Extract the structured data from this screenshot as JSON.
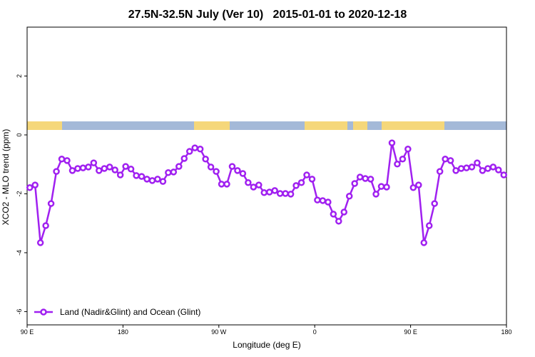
{
  "chart_data": {
    "type": "line",
    "title": "27.5N-32.5N July (Ver 10)   2015-01-01 to 2020-12-18",
    "x_label": "Longitude (deg E)",
    "y_label": "XCO2 - MLO trend (ppm)",
    "xlim": [
      90,
      540
    ],
    "ylim": [
      -6.45,
      3.66
    ],
    "xticks": [
      {
        "value": 90,
        "label": "90 E"
      },
      180,
      {
        "value": 270,
        "label": "90 W"
      },
      {
        "value": 360,
        "label": "0"
      },
      {
        "value": 450,
        "label": "90 E"
      },
      {
        "value": 540,
        "label": "180"
      }
    ],
    "yticks": [
      2,
      0,
      -2,
      -4,
      -6
    ],
    "legend": "bottom-left",
    "x": [
      92.5,
      97.5,
      102.5,
      107.5,
      112.5,
      117.5,
      122.5,
      127.5,
      132.5,
      137.5,
      142.5,
      147.5,
      152.5,
      157.5,
      162.5,
      167.5,
      172.5,
      177.5,
      182.5,
      187.5,
      192.5,
      197.5,
      202.5,
      207.5,
      212.5,
      217.5,
      222.5,
      227.5,
      232.5,
      237.5,
      242.5,
      247.5,
      252.5,
      257.5,
      262.5,
      267.5,
      272.5,
      277.5,
      282.5,
      287.5,
      292.5,
      297.5,
      302.5,
      307.5,
      312.5,
      317.5,
      322.5,
      327.5,
      332.5,
      337.5,
      342.5,
      347.5,
      352.5,
      357.5,
      362.5,
      367.5,
      372.5,
      377.5,
      382.5,
      387.5,
      392.5,
      397.5,
      402.5,
      407.5,
      412.5,
      417.5,
      422.5,
      427.5,
      432.5,
      437.5,
      442.5,
      447.5,
      452.5,
      457.5,
      462.5,
      467.5,
      472.5,
      477.5,
      482.5,
      487.5,
      492.5,
      497.5,
      502.5,
      507.5,
      512.5,
      517.5,
      522.5,
      527.5,
      532.5,
      537.5
    ],
    "series": [
      {
        "name": "Land (Nadir&Glint) and Ocean (Glint)",
        "color": "#a020f0",
        "values": [
          -1.79,
          -1.7,
          -3.66,
          -3.08,
          -2.33,
          -1.24,
          -0.82,
          -0.87,
          -1.21,
          -1.14,
          -1.12,
          -1.09,
          -0.95,
          -1.21,
          -1.14,
          -1.09,
          -1.19,
          -1.36,
          -1.07,
          -1.16,
          -1.38,
          -1.41,
          -1.5,
          -1.55,
          -1.5,
          -1.58,
          -1.28,
          -1.26,
          -1.07,
          -0.8,
          -0.56,
          -0.44,
          -0.48,
          -0.82,
          -1.09,
          -1.24,
          -1.67,
          -1.67,
          -1.07,
          -1.21,
          -1.31,
          -1.62,
          -1.77,
          -1.7,
          -1.96,
          -1.94,
          -1.89,
          -1.99,
          -1.99,
          -2.01,
          -1.72,
          -1.62,
          -1.36,
          -1.5,
          -2.21,
          -2.23,
          -2.28,
          -2.69,
          -2.93,
          -2.62,
          -2.08,
          -1.65,
          -1.43,
          -1.48,
          -1.5,
          -2.01,
          -1.75,
          -1.77,
          -0.27,
          -0.99,
          -0.82,
          -0.48,
          -1.79,
          -1.7,
          -3.66,
          -3.08,
          -2.33,
          -1.24,
          -0.82,
          -0.87,
          -1.21,
          -1.14,
          -1.12,
          -1.09,
          -0.95,
          -1.21,
          -1.14,
          -1.09,
          -1.19,
          -1.36
        ]
      }
    ]
  }
}
